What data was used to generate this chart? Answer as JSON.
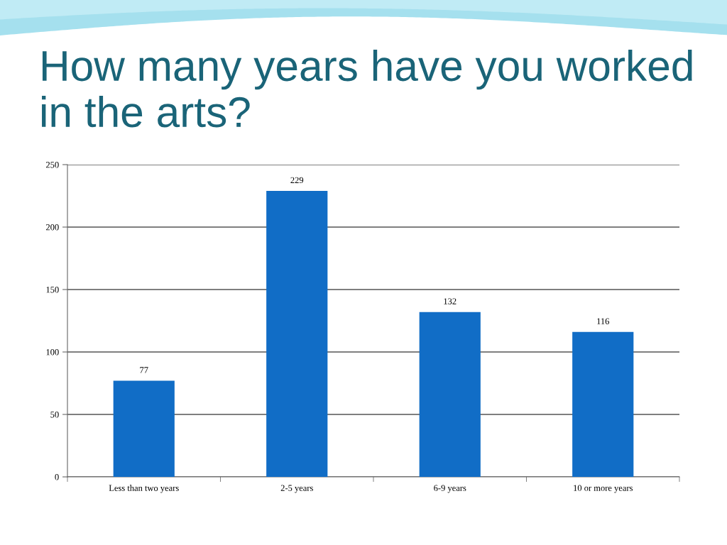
{
  "chart_data": {
    "type": "bar",
    "title": "How many years have you worked in the arts?",
    "categories": [
      "Less than two years",
      "2-5 years",
      "6-9 years",
      "10 or more years"
    ],
    "values": [
      77,
      229,
      132,
      116
    ],
    "color": "#116dc6",
    "ylim": [
      0,
      250
    ],
    "yticks": [
      0,
      50,
      100,
      150,
      200,
      250
    ],
    "grid": "y",
    "data_labels": true
  }
}
